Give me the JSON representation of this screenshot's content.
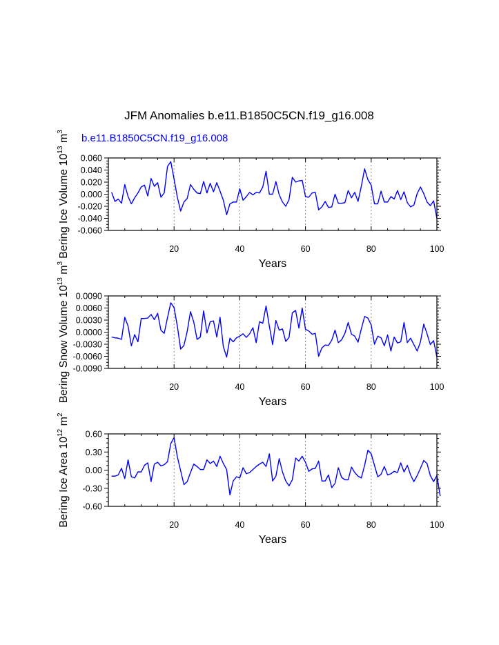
{
  "title": "JFM Anomalies b.e11.B1850C5CN.f19_g16.008",
  "legend_label": "b.e11.B1850C5CN.f19_g16.008",
  "colors": {
    "series": "#0000ff",
    "axis": "#000000",
    "grid": "#888888",
    "legend": "#0000ff"
  },
  "chart_data": [
    {
      "type": "line",
      "xlabel": "Years",
      "ylabel": {
        "name": "Bering Ice Volume 10",
        "exp": "13",
        "unit": " m",
        "unit_exp": "3"
      },
      "xlim": [
        0,
        100
      ],
      "ylim": [
        -0.06,
        0.06
      ],
      "xticks": [
        20,
        40,
        60,
        80,
        100
      ],
      "yticks": [
        -0.06,
        -0.04,
        -0.02,
        0.0,
        0.02,
        0.04,
        0.06
      ],
      "ytick_labels": [
        "-0.060",
        "-0.040",
        "-0.020",
        "0.000",
        "0.020",
        "0.040",
        "0.060"
      ],
      "grid_x": [
        20,
        40,
        60,
        80
      ],
      "series": [
        {
          "name": "b.e11.B1850C5CN.f19_g16.008",
          "values": [
            0.003,
            -0.012,
            -0.008,
            -0.015,
            0.016,
            -0.004,
            -0.016,
            -0.006,
            0.002,
            0.012,
            0.015,
            -0.003,
            0.026,
            0.013,
            0.019,
            -0.005,
            0.002,
            0.046,
            0.054,
            0.025,
            -0.005,
            -0.028,
            -0.013,
            -0.007,
            0.016,
            0.008,
            0.002,
            0.001,
            0.021,
            0.002,
            0.018,
            0.004,
            0.019,
            0.005,
            -0.01,
            -0.034,
            -0.016,
            -0.013,
            -0.013,
            0.009,
            -0.01,
            -0.004,
            0.003,
            -0.001,
            0.003,
            0.002,
            0.012,
            0.038,
            0.0,
            0.0,
            0.021,
            -0.001,
            -0.013,
            -0.02,
            -0.009,
            0.028,
            0.02,
            0.022,
            0.023,
            -0.004,
            -0.005,
            0.002,
            0.003,
            -0.026,
            -0.021,
            -0.012,
            -0.022,
            -0.021,
            0.0,
            -0.015,
            -0.015,
            -0.014,
            0.006,
            -0.006,
            0.003,
            -0.012,
            0.013,
            0.042,
            0.024,
            0.015,
            -0.016,
            -0.016,
            0.005,
            -0.013,
            -0.013,
            -0.004,
            -0.008,
            0.006,
            -0.009,
            0.004,
            -0.014,
            -0.021,
            -0.018,
            0.001,
            0.012,
            0.001,
            -0.013,
            -0.019,
            -0.011,
            -0.04
          ]
        }
      ]
    },
    {
      "type": "line",
      "xlabel": "Years",
      "ylabel": {
        "name": "Bering Snow Volume 10",
        "exp": "13",
        "unit": " m",
        "unit_exp": "3"
      },
      "xlim": [
        0,
        100
      ],
      "ylim": [
        -0.009,
        0.009
      ],
      "xticks": [
        20,
        40,
        60,
        80,
        100
      ],
      "yticks": [
        -0.009,
        -0.006,
        -0.003,
        0.0,
        0.003,
        0.006,
        0.009
      ],
      "ytick_labels": [
        "-0.0090",
        "-0.0060",
        "-0.0030",
        "0.0000",
        "0.0030",
        "0.0060",
        "0.0090"
      ],
      "grid_x": [
        20,
        40,
        60,
        80
      ],
      "series": [
        {
          "name": "b.e11.B1850C5CN.f19_g16.008",
          "values": [
            -0.0012,
            -0.0014,
            -0.0015,
            -0.0018,
            0.0037,
            0.0015,
            -0.0034,
            -0.0006,
            -0.0024,
            0.0034,
            0.0034,
            0.0035,
            0.0044,
            0.0031,
            0.0047,
            0.0005,
            -0.0003,
            0.0036,
            0.0073,
            0.0061,
            0.0015,
            -0.0042,
            -0.0033,
            0.0002,
            0.0051,
            0.0025,
            -0.0018,
            -0.0012,
            0.0053,
            -0.0002,
            0.0026,
            0.0028,
            -0.0012,
            0.0037,
            -0.0036,
            -0.0062,
            -0.0015,
            -0.0024,
            -0.0014,
            -0.001,
            -0.0004,
            -0.0013,
            -0.0004,
            0.0011,
            -0.0026,
            0.0026,
            0.0022,
            0.0065,
            0.0015,
            -0.0031,
            0.0029,
            0.0005,
            0.0008,
            -0.0023,
            -0.0013,
            0.0048,
            0.0054,
            0.001,
            0.006,
            0.0007,
            0.0003,
            -0.0005,
            -0.0003,
            -0.006,
            -0.0039,
            -0.0032,
            -0.0033,
            -0.002,
            0.0005,
            -0.0026,
            -0.0019,
            -0.0003,
            0.0024,
            -0.0005,
            -0.001,
            -0.0025,
            0.0008,
            0.0039,
            0.0035,
            0.0018,
            -0.003,
            -0.001,
            -0.0014,
            -0.0034,
            -0.0007,
            -0.0047,
            -0.0012,
            -0.0027,
            -0.0024,
            0.0024,
            -0.0026,
            -0.0015,
            -0.0031,
            -0.0047,
            -0.0024,
            0.002,
            -0.0004,
            -0.0031,
            -0.0021,
            -0.0062
          ]
        }
      ]
    },
    {
      "type": "line",
      "xlabel": "Years",
      "ylabel": {
        "name": "Bering Ice Area 10",
        "exp": "12",
        "unit": " m",
        "unit_exp": "2"
      },
      "xlim": [
        0,
        100
      ],
      "ylim": [
        -0.6,
        0.6
      ],
      "xticks": [
        20,
        40,
        60,
        80,
        100
      ],
      "yticks": [
        -0.6,
        -0.3,
        0.0,
        0.3,
        0.6
      ],
      "ytick_labels": [
        "-0.60",
        "-0.30",
        "0.00",
        "0.30",
        "0.60"
      ],
      "grid_x": [
        20,
        40,
        60,
        80
      ],
      "series": [
        {
          "name": "b.e11.B1850C5CN.f19_g16.008",
          "values": [
            -0.1,
            -0.1,
            -0.08,
            0.03,
            -0.14,
            0.17,
            -0.11,
            -0.13,
            -0.03,
            -0.03,
            0.08,
            0.12,
            -0.19,
            0.1,
            0.13,
            0.07,
            0.09,
            0.14,
            0.44,
            0.54,
            0.22,
            -0.01,
            -0.24,
            -0.19,
            -0.04,
            0.1,
            0.06,
            0.01,
            0.01,
            0.17,
            0.11,
            0.15,
            0.06,
            0.23,
            0.11,
            0.01,
            -0.41,
            -0.18,
            -0.11,
            -0.13,
            0.04,
            -0.06,
            -0.04,
            0.01,
            0.06,
            0.1,
            0.13,
            0.06,
            0.27,
            -0.18,
            -0.1,
            0.19,
            -0.03,
            -0.18,
            -0.26,
            -0.16,
            0.2,
            0.15,
            0.23,
            0.13,
            -0.02,
            0.02,
            0.03,
            0.15,
            -0.18,
            -0.18,
            -0.08,
            -0.29,
            -0.22,
            0.04,
            -0.12,
            -0.16,
            -0.16,
            0.05,
            -0.04,
            -0.1,
            -0.13,
            0.08,
            0.33,
            0.27,
            0.08,
            -0.11,
            -0.07,
            0.06,
            -0.08,
            -0.06,
            -0.02,
            -0.04,
            0.12,
            -0.03,
            0.08,
            -0.08,
            -0.19,
            -0.09,
            0.03,
            0.16,
            0.11,
            -0.09,
            -0.19,
            -0.09,
            -0.43
          ]
        }
      ]
    }
  ]
}
